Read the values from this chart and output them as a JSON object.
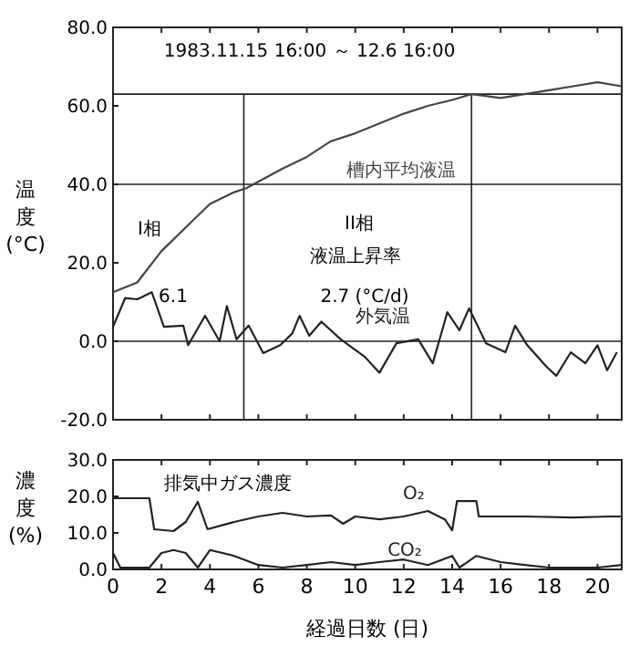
{
  "chart_data": [
    {
      "type": "line",
      "title": "1983.11.15 16:00 ～ 12.6 16:00",
      "ylabel": "温度 (°C)",
      "xlim": [
        0,
        21
      ],
      "xticks": [
        0,
        2,
        4,
        6,
        8,
        10,
        12,
        14,
        16,
        18,
        20
      ],
      "ylim": [
        -20,
        80
      ],
      "yticks": [
        {
          "value": -20,
          "label": "-20.0"
        },
        {
          "value": 0,
          "label": "0.0"
        },
        {
          "value": 20,
          "label": "20.0"
        },
        {
          "value": 40,
          "label": "40.0"
        },
        {
          "value": 60,
          "label": "60.0"
        },
        {
          "value": 80,
          "label": "80.0"
        }
      ],
      "tick_labels": "y",
      "grid": false,
      "series": [
        {
          "name": "槽内平均液温",
          "color": "#444444",
          "x": [
            0,
            1,
            2,
            3,
            4,
            5,
            5.5,
            7,
            8,
            9,
            10,
            11,
            12,
            13,
            14,
            14.8,
            16,
            17,
            18,
            19,
            20,
            21
          ],
          "values": [
            12.5,
            15,
            23,
            29,
            35,
            38,
            39,
            44,
            47,
            51,
            53,
            55.5,
            58,
            60,
            61.5,
            63,
            62,
            63,
            64,
            65,
            66,
            65
          ]
        },
        {
          "name": "外気温",
          "color": "#222222",
          "x": [
            0,
            0.5,
            1,
            1.6,
            2.1,
            2.9,
            3.1,
            3.8,
            4.4,
            4.7,
            5.1,
            5.6,
            6.2,
            6.9,
            7.4,
            7.7,
            8.1,
            8.6,
            9.4,
            10.4,
            11,
            11.7,
            12.6,
            13.2,
            13.8,
            14.3,
            14.7,
            15.4,
            16.2,
            16.6,
            17.1,
            17.9,
            18.3,
            18.9,
            19.5,
            20,
            20.4,
            20.8
          ],
          "values": [
            3.7,
            11,
            10.7,
            12.5,
            3.7,
            4,
            -1,
            6.5,
            0,
            9,
            0.5,
            4,
            -3,
            -1,
            2,
            6.5,
            1.4,
            5,
            0.5,
            -4,
            -8,
            -0.5,
            0.5,
            -5.6,
            7.4,
            2.8,
            8.4,
            -0.5,
            -2.8,
            4,
            -1,
            -6.5,
            -8.8,
            -2.8,
            -5.6,
            -1,
            -7.4,
            -2.8
          ]
        }
      ],
      "ref_lines": [
        {
          "axis": "y",
          "value": 0
        },
        {
          "axis": "y",
          "value": 40
        },
        {
          "axis": "y",
          "value": 63
        },
        {
          "axis": "x",
          "value": 5.4
        },
        {
          "axis": "x",
          "value": 14.8
        }
      ],
      "annotations": [
        "I相",
        "II相",
        "液温上昇率",
        "6.1",
        "2.7 (°C/d)"
      ]
    },
    {
      "type": "line",
      "title": "排気中ガス濃度",
      "xlabel": "経過日数 (日)",
      "ylabel": "濃度 (%)",
      "xlim": [
        0,
        21
      ],
      "xticks": [
        0,
        2,
        4,
        6,
        8,
        10,
        12,
        14,
        16,
        18,
        20
      ],
      "ylim": [
        0,
        30
      ],
      "yticks": [
        {
          "value": 0,
          "label": "0.0"
        },
        {
          "value": 10,
          "label": "10.0"
        },
        {
          "value": 20,
          "label": "20.0"
        },
        {
          "value": 30,
          "label": "30.0"
        }
      ],
      "grid": false,
      "series": [
        {
          "name": "O₂",
          "color": "#222222",
          "x": [
            0,
            1.5,
            1.7,
            2.5,
            3,
            3.5,
            3.9,
            5,
            6,
            7,
            8,
            9,
            9.5,
            10,
            11,
            12,
            13,
            13.7,
            14,
            14.2,
            14.5,
            15,
            15.1,
            17,
            19,
            20.5,
            21
          ],
          "values": [
            19.5,
            19.5,
            11,
            10.5,
            13,
            18.5,
            11,
            13,
            14.5,
            15.5,
            14.5,
            14.8,
            12.5,
            14.5,
            13.7,
            14.5,
            16,
            13.7,
            10.7,
            18.7,
            18.7,
            18.7,
            14.5,
            14.5,
            14.2,
            14.5,
            14.5
          ]
        },
        {
          "name": "CO₂",
          "color": "#222222",
          "x": [
            0,
            0.3,
            1.5,
            2,
            2.5,
            3,
            3.5,
            4,
            5,
            6,
            7,
            8,
            9,
            10,
            11,
            12,
            13,
            14,
            14.3,
            15,
            16,
            17,
            18,
            20,
            21
          ],
          "values": [
            4.5,
            0.5,
            0.5,
            4.5,
            5.3,
            4.5,
            0.5,
            5.3,
            3.7,
            1.2,
            0.5,
            1.2,
            2,
            1.2,
            2,
            2.7,
            1.2,
            3.7,
            0.5,
            3.7,
            2,
            1.2,
            0.5,
            0.5,
            1.2
          ]
        }
      ]
    }
  ]
}
